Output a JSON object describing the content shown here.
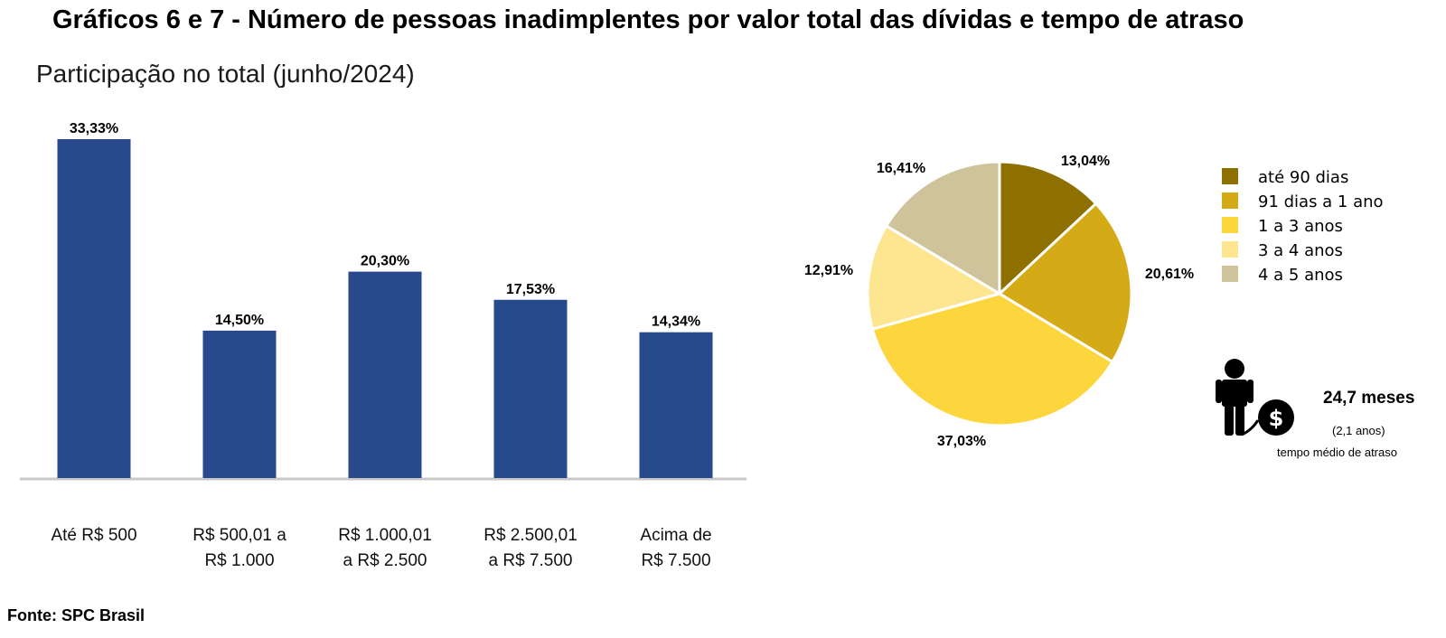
{
  "title": "Gráficos 6 e 7 - Número de pessoas inadimplentes por valor total das dívidas e tempo de atraso",
  "subtitle": "Participação no total (junho/2024)",
  "source": "Fonte: SPC Brasil",
  "info": {
    "value": "24,7 meses",
    "value_alt": "(2,1 anos)",
    "caption": "tempo médio de atraso",
    "icons": [
      "person-icon",
      "dollar-coin-icon"
    ]
  },
  "chart_data": [
    {
      "type": "bar",
      "categories": [
        [
          "Até R$ 500"
        ],
        [
          "R$ 500,01 a",
          "R$ 1.000"
        ],
        [
          "R$ 1.000,01",
          "a R$ 2.500"
        ],
        [
          "R$ 2.500,01",
          "a R$ 7.500"
        ],
        [
          "Acima de",
          "R$ 7.500"
        ]
      ],
      "values": [
        33.33,
        14.5,
        20.3,
        17.53,
        14.34
      ],
      "data_labels": [
        "33,33%",
        "14,50%",
        "20,30%",
        "17,53%",
        "14,34%"
      ],
      "ylim": [
        0,
        33.33
      ],
      "color": "#284a8c",
      "grid": false
    },
    {
      "type": "pie",
      "labels": [
        "até 90 dias",
        "91 dias a 1 ano",
        "1 a 3 anos",
        "3 a 4 anos",
        "4 a 5 anos"
      ],
      "values": [
        13.04,
        20.61,
        37.03,
        12.91,
        16.41
      ],
      "data_labels": [
        "13,04%",
        "20,61%",
        "37,03%",
        "12,91%",
        "16,41%"
      ],
      "colors": [
        "#8e7000",
        "#d4aa17",
        "#fdd63e",
        "#fde68f",
        "#cfc39c"
      ],
      "legend_position": "right"
    }
  ]
}
